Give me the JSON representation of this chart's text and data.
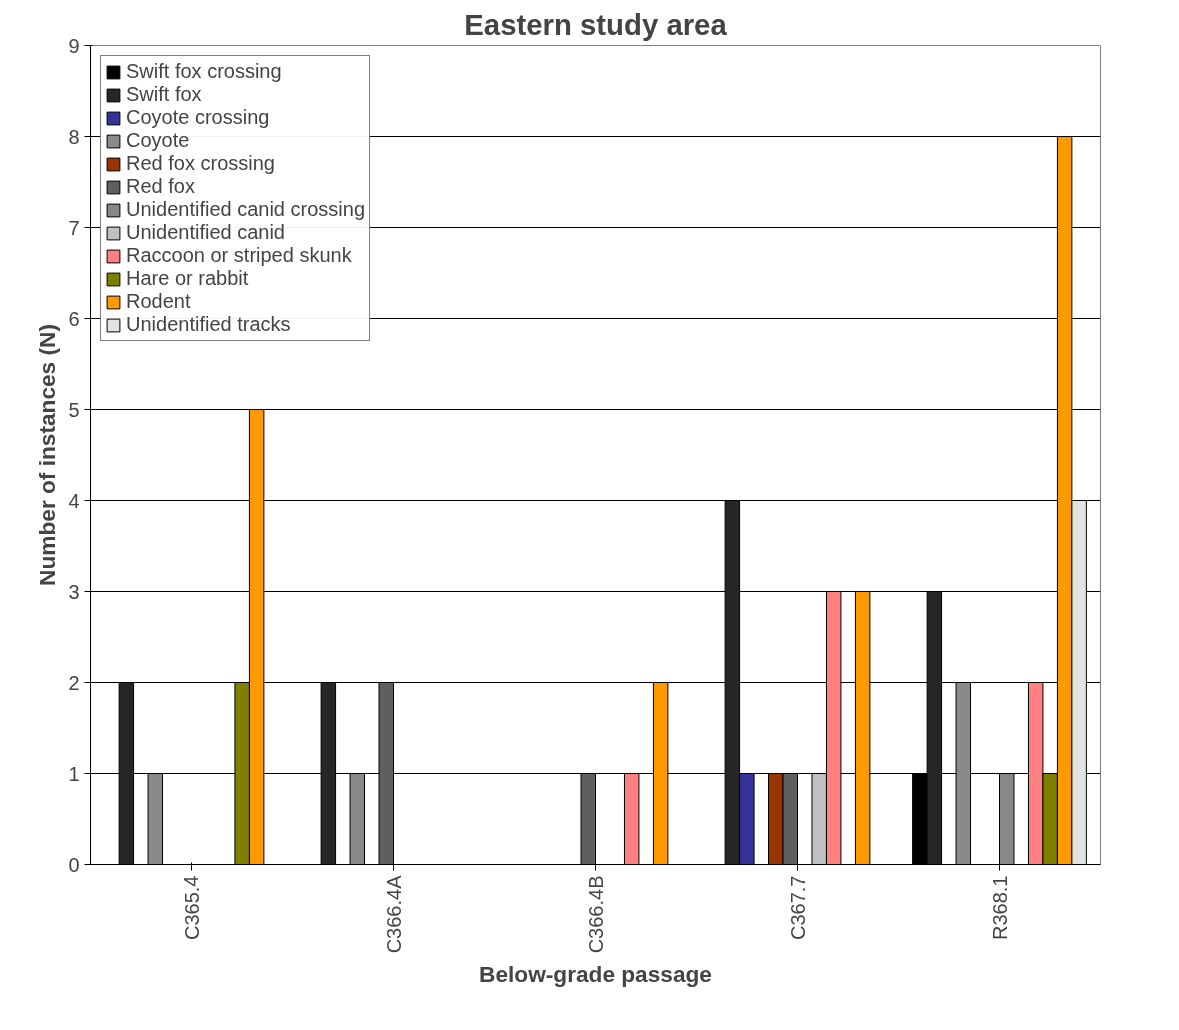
{
  "chart_data": {
    "type": "bar",
    "title": "Eastern study area",
    "xlabel": "Below-grade passage",
    "ylabel": "Number of instances (N)",
    "categories": [
      "C365.4",
      "C366.4A",
      "C366.4B",
      "C367.7",
      "R368.1"
    ],
    "ylim": [
      0,
      9
    ],
    "yticks": [
      0,
      1,
      2,
      3,
      4,
      5,
      6,
      7,
      8,
      9
    ],
    "grid": "y",
    "legend": "top left",
    "series": [
      {
        "name": "Swift fox crossing",
        "color": "#000000",
        "values": [
          null,
          null,
          null,
          null,
          1
        ]
      },
      {
        "name": "Swift fox",
        "color": "#262626",
        "values": [
          2,
          2,
          null,
          4,
          3
        ]
      },
      {
        "name": "Coyote crossing",
        "color": "#333399",
        "values": [
          null,
          null,
          null,
          1,
          null
        ]
      },
      {
        "name": "Coyote",
        "color": "#8a8a8a",
        "values": [
          1,
          1,
          null,
          null,
          2
        ]
      },
      {
        "name": "Red fox crossing",
        "color": "#993300",
        "values": [
          null,
          null,
          null,
          1,
          null
        ]
      },
      {
        "name": "Red fox",
        "color": "#5f5f5f",
        "values": [
          null,
          2,
          1,
          1,
          null
        ]
      },
      {
        "name": "Unidentified canid crossing",
        "color": "#888888",
        "values": [
          null,
          null,
          null,
          null,
          1
        ]
      },
      {
        "name": "Unidentified canid",
        "color": "#c0c0c0",
        "values": [
          null,
          null,
          null,
          1,
          null
        ]
      },
      {
        "name": "Raccoon or striped skunk",
        "color": "#ff8080",
        "values": [
          null,
          null,
          1,
          3,
          2
        ]
      },
      {
        "name": "Hare or rabbit",
        "color": "#808000",
        "values": [
          2,
          null,
          null,
          null,
          1
        ]
      },
      {
        "name": "Rodent",
        "color": "#ff9900",
        "values": [
          5,
          null,
          2,
          3,
          8
        ]
      },
      {
        "name": "Unidentified tracks",
        "color": "#e3e3e3",
        "values": [
          null,
          null,
          null,
          null,
          4
        ]
      }
    ]
  }
}
